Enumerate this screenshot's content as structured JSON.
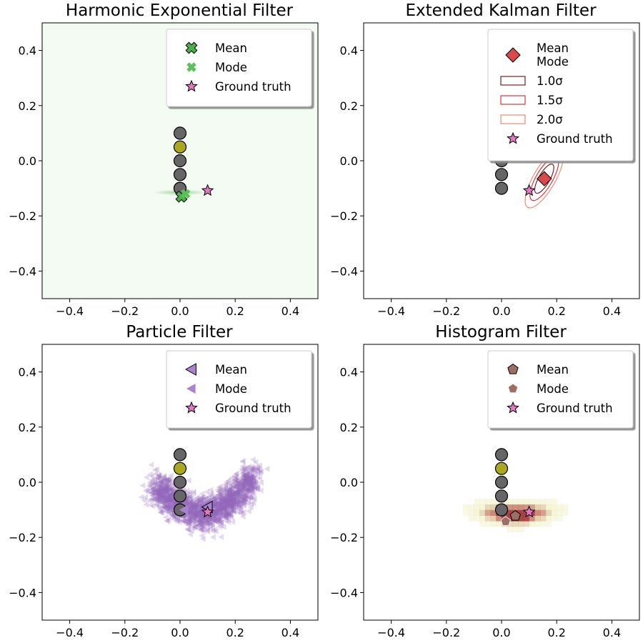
{
  "chart_data": [
    {
      "type": "scatter",
      "panel": "harmonic",
      "title": "Harmonic Exponential Filter",
      "xlim": [
        -0.5,
        0.5
      ],
      "ylim": [
        -0.5,
        0.5
      ],
      "xticks": [
        -0.4,
        -0.2,
        0.0,
        0.2,
        0.4
      ],
      "yticks": [
        -0.4,
        -0.2,
        0.0,
        0.2,
        0.4
      ],
      "landmarks": {
        "x": [
          0,
          0,
          0,
          0,
          0,
          0
        ],
        "y": [
          0.1,
          0.05,
          0.0,
          -0.05,
          -0.1,
          -0.1
        ],
        "colors": [
          "#666666",
          "#aaa81f",
          "#666666",
          "#666666",
          "#666666",
          "#666666"
        ]
      },
      "density": {
        "color": "#2ca02c",
        "note": "faint green background",
        "peak": [
          0.0,
          -0.115
        ]
      },
      "mean": [
        0.005,
        -0.13
      ],
      "mode": [
        0.02,
        -0.12
      ],
      "ground_truth": [
        0.1,
        -0.108
      ],
      "colors": {
        "mean": "#4daf4a",
        "mode": "#5cc05a",
        "ground_truth": "#e377c2"
      },
      "legend": [
        {
          "label": "Mean",
          "marker": "x-mean"
        },
        {
          "label": "Mode",
          "marker": "x-mode"
        },
        {
          "label": "Ground truth",
          "marker": "star"
        }
      ],
      "legend_position": "upper-right"
    },
    {
      "type": "scatter",
      "panel": "kalman",
      "title": "Extended Kalman Filter",
      "xlim": [
        -0.5,
        0.5
      ],
      "ylim": [
        -0.5,
        0.5
      ],
      "xticks": [
        -0.4,
        -0.2,
        0.0,
        0.2,
        0.4
      ],
      "yticks": [
        -0.4,
        -0.2,
        0.0,
        0.2,
        0.4
      ],
      "landmarks": {
        "x": [
          0,
          0,
          0
        ],
        "y": [
          0.0,
          -0.05,
          -0.1
        ],
        "colors": [
          "#666666",
          "#666666",
          "#666666"
        ]
      },
      "mean": [
        0.155,
        -0.065
      ],
      "mode": [
        0.155,
        -0.065
      ],
      "ground_truth": [
        0.1,
        -0.108
      ],
      "ellipses": [
        {
          "sigma": 1.0,
          "label": "1.0σ",
          "color": "#7b1f2a",
          "rx": 0.02,
          "ry": 0.06
        },
        {
          "sigma": 1.5,
          "label": "1.5σ",
          "color": "#d9363e",
          "rx": 0.03,
          "ry": 0.09
        },
        {
          "sigma": 2.0,
          "label": "2.0σ",
          "color": "#f08a70",
          "rx": 0.04,
          "ry": 0.12
        }
      ],
      "ellipse_angle_deg": 30,
      "colors": {
        "mean": "#d9484a",
        "ground_truth": "#e377c2"
      },
      "legend": [
        {
          "label": "Mean\nMode",
          "marker": "diamond"
        },
        {
          "label": "1.0σ",
          "marker": "rect-1"
        },
        {
          "label": "1.5σ",
          "marker": "rect-2"
        },
        {
          "label": "2.0σ",
          "marker": "rect-3"
        },
        {
          "label": "Ground truth",
          "marker": "star"
        }
      ],
      "legend_position": "upper-right"
    },
    {
      "type": "scatter",
      "panel": "particle",
      "title": "Particle Filter",
      "xlim": [
        -0.5,
        0.5
      ],
      "ylim": [
        -0.5,
        0.5
      ],
      "xticks": [
        -0.4,
        -0.2,
        0.0,
        0.2,
        0.4
      ],
      "yticks": [
        -0.4,
        -0.2,
        0.0,
        0.2,
        0.4
      ],
      "landmarks": {
        "x": [
          0,
          0,
          0,
          0,
          0
        ],
        "y": [
          0.1,
          0.05,
          0.0,
          -0.05,
          -0.1
        ],
        "colors": [
          "#666666",
          "#aaa81f",
          "#666666",
          "#666666",
          "#666666"
        ]
      },
      "particles": {
        "color": "#9467bd",
        "count": 1800,
        "shape": "crescent",
        "center": [
          0.09,
          -0.07
        ]
      },
      "mean": [
        0.1,
        -0.09
      ],
      "mode": [
        0.015,
        -0.1
      ],
      "ground_truth": [
        0.1,
        -0.108
      ],
      "colors": {
        "mean": "#a983d1",
        "mode": "#a983d1",
        "ground_truth": "#e377c2"
      },
      "legend": [
        {
          "label": "Mean",
          "marker": "tri-mean"
        },
        {
          "label": "Mode",
          "marker": "tri-mode"
        },
        {
          "label": "Ground truth",
          "marker": "star"
        }
      ],
      "legend_position": "upper-right"
    },
    {
      "type": "heatmap",
      "panel": "histogram",
      "title": "Histogram Filter",
      "xlim": [
        -0.5,
        0.5
      ],
      "ylim": [
        -0.5,
        0.5
      ],
      "xticks": [
        -0.4,
        -0.2,
        0.0,
        0.2,
        0.4
      ],
      "yticks": [
        -0.4,
        -0.2,
        0.0,
        0.2,
        0.4
      ],
      "landmarks": {
        "x": [
          0,
          0,
          0,
          0,
          0
        ],
        "y": [
          0.1,
          0.05,
          0.0,
          -0.05,
          -0.1
        ],
        "colors": [
          "#666666",
          "#aaa81f",
          "#666666",
          "#666666",
          "#666666"
        ]
      },
      "heat_center": [
        0.04,
        -0.125
      ],
      "mean": [
        0.05,
        -0.122
      ],
      "mode": [
        0.015,
        -0.142
      ],
      "ground_truth": [
        0.1,
        -0.108
      ],
      "colors": {
        "mean": "#9b6f62",
        "mode": "#9b6f62",
        "ground_truth": "#e377c2"
      },
      "legend": [
        {
          "label": "Mean",
          "marker": "pent-mean"
        },
        {
          "label": "Mode",
          "marker": "pent-mode"
        },
        {
          "label": "Ground truth",
          "marker": "star"
        }
      ],
      "legend_position": "upper-right"
    }
  ]
}
